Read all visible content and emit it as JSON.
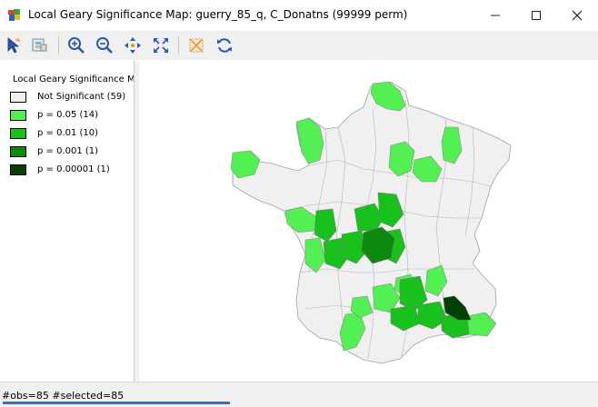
{
  "window": {
    "title": "Local Geary Significance Map: guerry_85_q, C_Donatns (99999 perm)",
    "controls": [
      "minimize",
      "maximize",
      "close"
    ]
  },
  "toolbar": {
    "tools": [
      {
        "name": "select-tool-icon"
      },
      {
        "name": "selection-mode-icon"
      },
      {
        "name": "zoom-in-icon"
      },
      {
        "name": "zoom-out-icon"
      },
      {
        "name": "pan-icon"
      },
      {
        "name": "fit-to-window-icon"
      },
      {
        "name": "clear-selection-icon"
      },
      {
        "name": "refresh-icon"
      }
    ]
  },
  "legend": {
    "title": "Local Geary Significance M",
    "items": [
      {
        "label": "Not Significant (59)",
        "color": "#f0f0f0"
      },
      {
        "label": "p = 0.05 (14)",
        "color": "#53f053"
      },
      {
        "label": "p = 0.01 (10)",
        "color": "#18c11c"
      },
      {
        "label": "p = 0.001 (1)",
        "color": "#0d8a0e"
      },
      {
        "label": "p = 0.00001 (1)",
        "color": "#024003"
      }
    ]
  },
  "map": {
    "observations": 85,
    "colors": {
      "not_significant": "#f0f0f0",
      "p05": "#53f053",
      "p01": "#18c11c",
      "p001": "#0d8a0e",
      "p00001": "#024003",
      "border": "#a0a0a0"
    }
  },
  "status": {
    "text": "#obs=85 #selected=85"
  }
}
